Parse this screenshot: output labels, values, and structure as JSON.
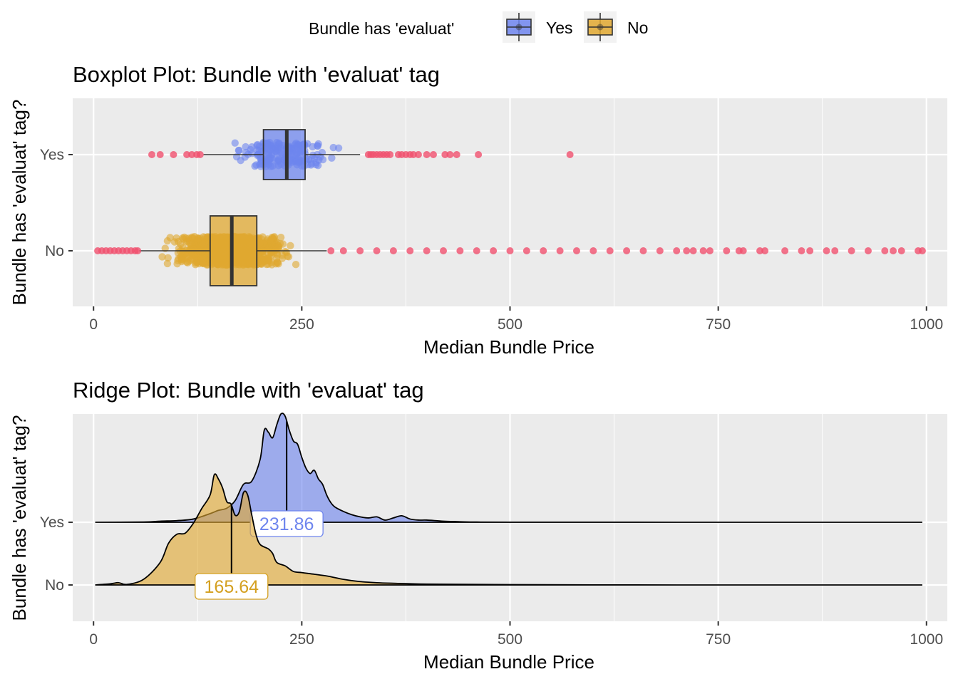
{
  "legend": {
    "title": "Bundle has 'evaluat'",
    "entries": [
      {
        "label": "Yes",
        "fill": "#6e85ee",
        "stroke": "#333333"
      },
      {
        "label": "No",
        "fill": "#e0a830",
        "stroke": "#333333"
      }
    ]
  },
  "colors": {
    "outlier": "#f0506e",
    "yes": "#6e85ee",
    "no": "#e0a830",
    "yes_label_text": "#6e85ee",
    "no_label_text": "#d4a020"
  },
  "chart_data": [
    {
      "type": "boxplot",
      "title": "Boxplot Plot: Bundle with 'evaluat' tag",
      "xlabel": "Median Bundle Price",
      "ylabel": "Bundle has 'evaluat' tag?",
      "xlim": [
        -25,
        1025
      ],
      "x_ticks": [
        0,
        250,
        500,
        750,
        1000
      ],
      "categories": [
        "Yes",
        "No"
      ],
      "grid": true,
      "series": [
        {
          "name": "Yes",
          "min": 132,
          "q1": 204,
          "median": 232,
          "q3": 254,
          "max": 320,
          "points_range": [
            155,
            310
          ],
          "outliers": [
            70,
            80,
            96,
            112,
            118,
            124,
            128,
            330,
            333,
            336,
            340,
            344,
            348,
            352,
            356,
            366,
            370,
            375,
            380,
            384,
            390,
            400,
            408,
            422,
            428,
            436,
            462,
            572
          ]
        },
        {
          "name": "No",
          "min": 55,
          "q1": 140,
          "median": 166,
          "q3": 196,
          "max": 280,
          "points_range": [
            78,
            253
          ],
          "outliers": [
            5,
            10,
            15,
            20,
            25,
            30,
            35,
            40,
            45,
            50,
            53,
            285,
            300,
            320,
            340,
            360,
            380,
            400,
            420,
            440,
            460,
            480,
            500,
            520,
            540,
            560,
            580,
            600,
            620,
            640,
            660,
            680,
            700,
            712,
            720,
            732,
            740,
            760,
            775,
            780,
            800,
            806,
            830,
            850,
            860,
            880,
            890,
            910,
            930,
            950,
            960,
            970,
            990,
            995
          ]
        }
      ]
    },
    {
      "type": "ridge",
      "title": "Ridge Plot: Bundle with 'evaluat' tag",
      "xlabel": "Median Bundle Price",
      "ylabel": "Bundle has 'evaluat' tag?",
      "xlim": [
        -25,
        1025
      ],
      "x_ticks": [
        0,
        250,
        500,
        750,
        1000
      ],
      "categories": [
        "Yes",
        "No"
      ],
      "grid": true,
      "series": [
        {
          "name": "Yes",
          "median": 231.86,
          "median_label": "231.86",
          "x": [
            2,
            60,
            80,
            100,
            120,
            140,
            150,
            160,
            170,
            180,
            190,
            200,
            205,
            210,
            215,
            220,
            225,
            230,
            235,
            240,
            245,
            250,
            255,
            260,
            265,
            270,
            275,
            280,
            285,
            290,
            300,
            310,
            320,
            330,
            340,
            350,
            360,
            370,
            380,
            390,
            400,
            420,
            440,
            460,
            500,
            600,
            700,
            995
          ],
          "density": [
            0,
            0.002,
            0.01,
            0.015,
            0.03,
            0.08,
            0.11,
            0.13,
            0.2,
            0.35,
            0.38,
            0.58,
            0.85,
            0.83,
            0.78,
            0.9,
            1.0,
            0.98,
            0.85,
            0.75,
            0.72,
            0.6,
            0.5,
            0.45,
            0.48,
            0.4,
            0.35,
            0.25,
            0.18,
            0.14,
            0.1,
            0.07,
            0.05,
            0.04,
            0.05,
            0.02,
            0.04,
            0.06,
            0.03,
            0.02,
            0.02,
            0.01,
            0.005,
            0.002,
            0.001,
            0.001,
            0,
            0
          ]
        },
        {
          "name": "No",
          "median": 165.64,
          "median_label": "165.64",
          "x": [
            2,
            20,
            30,
            40,
            60,
            80,
            90,
            100,
            110,
            120,
            130,
            140,
            145,
            150,
            155,
            160,
            165,
            170,
            175,
            180,
            185,
            190,
            195,
            200,
            210,
            215,
            220,
            230,
            240,
            250,
            260,
            280,
            300,
            320,
            340,
            360,
            400,
            500,
            600,
            700,
            995
          ],
          "density": [
            0,
            0.01,
            0.02,
            0.005,
            0.05,
            0.2,
            0.37,
            0.45,
            0.46,
            0.55,
            0.68,
            0.8,
            0.98,
            0.94,
            0.86,
            0.74,
            0.72,
            0.62,
            0.65,
            0.82,
            0.8,
            0.62,
            0.45,
            0.36,
            0.32,
            0.28,
            0.2,
            0.17,
            0.12,
            0.11,
            0.1,
            0.08,
            0.05,
            0.03,
            0.02,
            0.015,
            0.008,
            0.003,
            0.001,
            0,
            0
          ]
        }
      ]
    }
  ]
}
